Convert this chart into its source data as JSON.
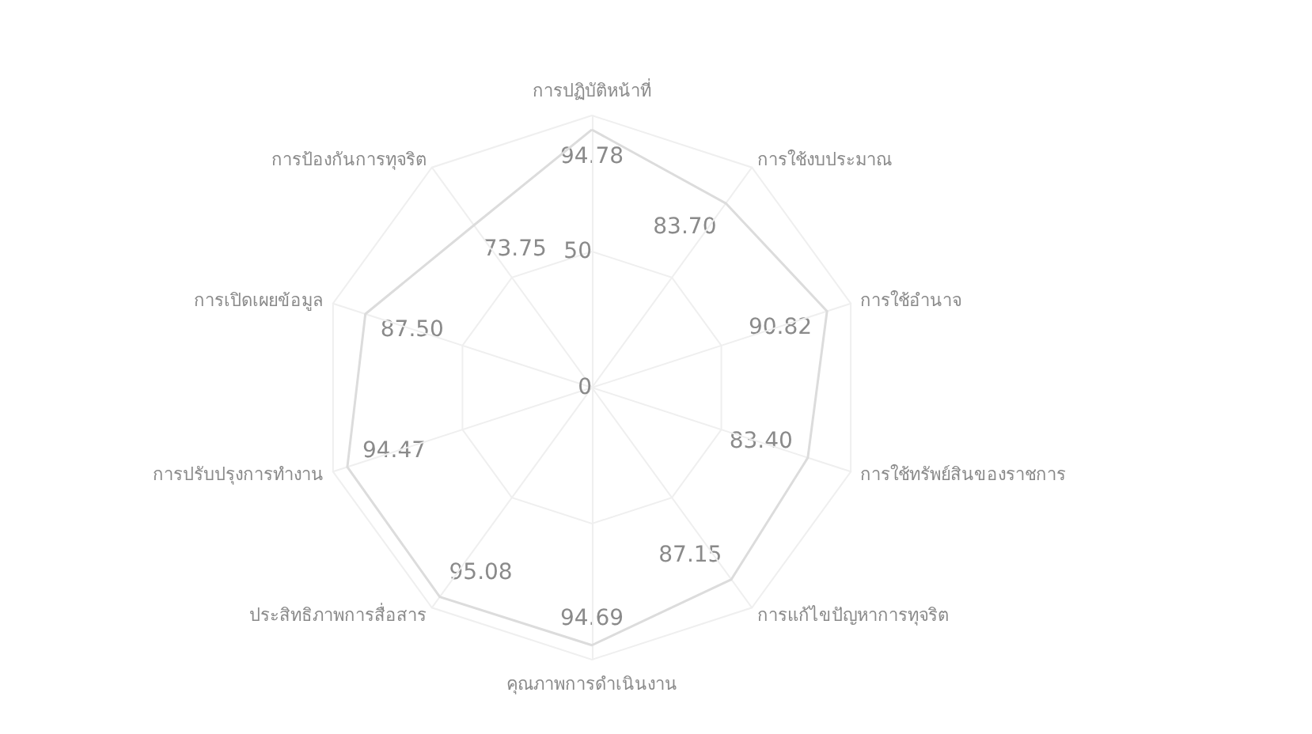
{
  "chart_data": {
    "type": "radar",
    "categories": [
      "การปฏิบัติหน้าที่",
      "การใช้งบประมาณ",
      "การใช้อำนาจ",
      "การใช้ทรัพย์สินของราชการ",
      "การแก้ไขปัญหาการทุจริต",
      "คุณภาพการดำเนินงาน",
      "ประสิทธิภาพการสื่อสาร",
      "การปรับปรุงการทำงาน",
      "การเปิดเผยข้อมูล",
      "การป้องกันการทุจริต"
    ],
    "series": [
      {
        "color": "#dcdcdc",
        "values": [
          94.78,
          83.7,
          90.82,
          83.4,
          87.15,
          94.69,
          95.08,
          94.47,
          87.5,
          73.75
        ],
        "value_labels": [
          "94.78",
          "83.70",
          "90.82",
          "83.40",
          "87.15",
          "94.69",
          "95.08",
          "94.47",
          "87.50",
          "73.75"
        ]
      }
    ],
    "ylim": [
      0,
      100
    ],
    "yticks": [
      0,
      50
    ],
    "marker": "none",
    "grid": true
  }
}
